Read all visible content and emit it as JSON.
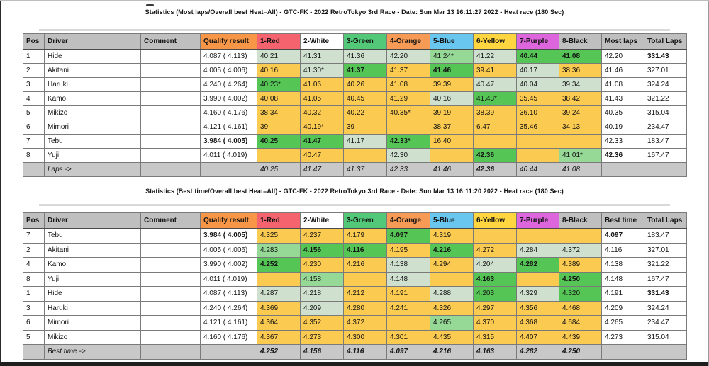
{
  "colors": {
    "header_gray": "#bfbfbf",
    "footer_gray": "#c8c8c8",
    "cells": {
      "w": "#ffffff",
      "y": "#fbca50",
      "g": "#55c556",
      "lg": "#96d896",
      "pg": "#cfe0cf"
    }
  },
  "tables": [
    {
      "title": "Statistics (Most laps/Overall best Heat=All) - GTC-FK - 2022 RetroTokyo 3rd Race - Date: Sun Mar 13 16:11:27 2022 - Heat race (180 Sec)",
      "columns": [
        {
          "label": "Pos",
          "bg": "#bfbfbf"
        },
        {
          "label": "Driver",
          "bg": "#bfbfbf"
        },
        {
          "label": "Comment",
          "bg": "#bfbfbf"
        },
        {
          "label": "Qualify result",
          "bg": "#f79646"
        },
        {
          "label": "1-Red",
          "bg": "#f4636e"
        },
        {
          "label": "2-White",
          "bg": "#ffffff"
        },
        {
          "label": "3-Green",
          "bg": "#52c878"
        },
        {
          "label": "4-Orange",
          "bg": "#f79a55"
        },
        {
          "label": "5-Blue",
          "bg": "#69c6ee"
        },
        {
          "label": "6-Yellow",
          "bg": "#ffd63f"
        },
        {
          "label": "7-Purple",
          "bg": "#dd66dd"
        },
        {
          "label": "8-Black",
          "bg": "#bfbfbf"
        },
        {
          "label": "Most laps",
          "bg": "#bfbfbf"
        },
        {
          "label": "Total Laps",
          "bg": "#bfbfbf"
        }
      ],
      "rows": [
        {
          "pos": "1",
          "driver": "Hide",
          "comment": "",
          "qualify": "4.087 ( 4.113)",
          "qbold": 0,
          "heats": [
            [
              "40.21",
              "pg",
              0
            ],
            [
              "41.31",
              "pg",
              0
            ],
            [
              "41.36",
              "pg",
              0
            ],
            [
              "42.20",
              "pg",
              0
            ],
            [
              "41.24*",
              "lg",
              0
            ],
            [
              "41.22",
              "pg",
              0
            ],
            [
              "40.44",
              "g",
              1
            ],
            [
              "41.08",
              "g",
              1
            ]
          ],
          "agg": "42.20",
          "aggBold": 0,
          "total": "331.43",
          "totalBold": 1
        },
        {
          "pos": "2",
          "driver": "Akitani",
          "comment": "",
          "qualify": "4.005 ( 4.006)",
          "qbold": 0,
          "heats": [
            [
              "40.16",
              "y",
              0
            ],
            [
              "41.30*",
              "pg",
              0
            ],
            [
              "41.37",
              "g",
              1
            ],
            [
              "41.37",
              "y",
              0
            ],
            [
              "41.46",
              "g",
              1
            ],
            [
              "39.41",
              "y",
              0
            ],
            [
              "40.17",
              "pg",
              0
            ],
            [
              "38.36",
              "y",
              0
            ]
          ],
          "agg": "41.46",
          "aggBold": 0,
          "total": "327.01",
          "totalBold": 0
        },
        {
          "pos": "3",
          "driver": "Haruki",
          "comment": "",
          "qualify": "4.240 ( 4.264)",
          "qbold": 0,
          "heats": [
            [
              "40.23*",
              "g",
              0
            ],
            [
              "41.06",
              "y",
              0
            ],
            [
              "40.26",
              "y",
              0
            ],
            [
              "41.08",
              "y",
              0
            ],
            [
              "39.39",
              "y",
              0
            ],
            [
              "40.47",
              "pg",
              0
            ],
            [
              "40.04",
              "pg",
              0
            ],
            [
              "39.34",
              "pg",
              0
            ]
          ],
          "agg": "41.08",
          "aggBold": 0,
          "total": "324.24",
          "totalBold": 0
        },
        {
          "pos": "4",
          "driver": "Kamo",
          "comment": "",
          "qualify": "3.990 ( 4.002)",
          "qbold": 0,
          "heats": [
            [
              "40.08",
              "y",
              0
            ],
            [
              "41.05",
              "y",
              0
            ],
            [
              "40.45",
              "y",
              0
            ],
            [
              "41.29",
              "y",
              0
            ],
            [
              "40.16",
              "pg",
              0
            ],
            [
              "41.43*",
              "g",
              0
            ],
            [
              "35.45",
              "y",
              0
            ],
            [
              "38.42",
              "y",
              0
            ]
          ],
          "agg": "41.43",
          "aggBold": 0,
          "total": "321.22",
          "totalBold": 0
        },
        {
          "pos": "5",
          "driver": "Mikizo",
          "comment": "",
          "qualify": "4.160 ( 4.176)",
          "qbold": 0,
          "heats": [
            [
              "38.34",
              "y",
              0
            ],
            [
              "40.32",
              "y",
              0
            ],
            [
              "40.22",
              "y",
              0
            ],
            [
              "40.35*",
              "y",
              0
            ],
            [
              "39.19",
              "y",
              0
            ],
            [
              "38.39",
              "y",
              0
            ],
            [
              "36.10",
              "y",
              0
            ],
            [
              "39.24",
              "y",
              0
            ]
          ],
          "agg": "40.35",
          "aggBold": 0,
          "total": "315.04",
          "totalBold": 0
        },
        {
          "pos": "6",
          "driver": "Mimori",
          "comment": "",
          "qualify": "4.121 ( 4.161)",
          "qbold": 0,
          "heats": [
            [
              "39",
              "y",
              0
            ],
            [
              "40.19*",
              "y",
              0
            ],
            [
              "39",
              "y",
              0
            ],
            [
              "",
              "y",
              0
            ],
            [
              "38.37",
              "y",
              0
            ],
            [
              "6.47",
              "y",
              0
            ],
            [
              "35.46",
              "y",
              0
            ],
            [
              "34.13",
              "y",
              0
            ]
          ],
          "agg": "40.19",
          "aggBold": 0,
          "total": "234.47",
          "totalBold": 0
        },
        {
          "pos": "7",
          "driver": "Tebu",
          "comment": "",
          "qualify": "3.984 ( 4.005)",
          "qbold": 1,
          "heats": [
            [
              "40.25",
              "g",
              1
            ],
            [
              "41.47",
              "g",
              1
            ],
            [
              "41.17",
              "pg",
              0
            ],
            [
              "42.33*",
              "g",
              1
            ],
            [
              "16.40",
              "y",
              0
            ],
            [
              "",
              "y",
              0
            ],
            [
              "",
              "y",
              0
            ],
            [
              "",
              "y",
              0
            ]
          ],
          "agg": "42.33",
          "aggBold": 0,
          "total": "183.47",
          "totalBold": 0
        },
        {
          "pos": "8",
          "driver": "Yuji",
          "comment": "",
          "qualify": "4.011 ( 4.019)",
          "qbold": 0,
          "heats": [
            [
              "",
              "y",
              0
            ],
            [
              "40.47",
              "y",
              0
            ],
            [
              "",
              "y",
              0
            ],
            [
              "42.30",
              "pg",
              0
            ],
            [
              "",
              "y",
              0
            ],
            [
              "42.36",
              "g",
              1
            ],
            [
              "",
              "y",
              0
            ],
            [
              "41.01*",
              "lg",
              0
            ]
          ],
          "agg": "42.36",
          "aggBold": 1,
          "total": "167.47",
          "totalBold": 0
        }
      ],
      "footer": {
        "label": "Laps ->",
        "values": [
          [
            "40.25",
            0
          ],
          [
            "41.47",
            0
          ],
          [
            "41.37",
            0
          ],
          [
            "42.33",
            0
          ],
          [
            "41.46",
            0
          ],
          [
            "42.36",
            1
          ],
          [
            "40.44",
            0
          ],
          [
            "41.08",
            0
          ]
        ]
      }
    },
    {
      "title": "Statistics (Best time/Overall best Heat=All) - GTC-FK - 2022 RetroTokyo 3rd Race - Date: Sun Mar 13 16:11:20 2022 - Heat race (180 Sec)",
      "columns": [
        {
          "label": "Pos",
          "bg": "#bfbfbf"
        },
        {
          "label": "Driver",
          "bg": "#bfbfbf"
        },
        {
          "label": "Comment",
          "bg": "#bfbfbf"
        },
        {
          "label": "Qualify result",
          "bg": "#f79646"
        },
        {
          "label": "1-Red",
          "bg": "#f4636e"
        },
        {
          "label": "2-White",
          "bg": "#ffffff"
        },
        {
          "label": "3-Green",
          "bg": "#52c878"
        },
        {
          "label": "4-Orange",
          "bg": "#f79a55"
        },
        {
          "label": "5-Blue",
          "bg": "#69c6ee"
        },
        {
          "label": "6-Yellow",
          "bg": "#ffd63f"
        },
        {
          "label": "7-Purple",
          "bg": "#dd66dd"
        },
        {
          "label": "8-Black",
          "bg": "#bfbfbf"
        },
        {
          "label": "Best time",
          "bg": "#bfbfbf"
        },
        {
          "label": "Total Laps",
          "bg": "#bfbfbf"
        }
      ],
      "rows": [
        {
          "pos": "7",
          "driver": "Tebu",
          "comment": "",
          "qualify": "3.984 ( 4.005)",
          "qbold": 1,
          "heats": [
            [
              "4.325",
              "y",
              0
            ],
            [
              "4.237",
              "y",
              0
            ],
            [
              "4.179",
              "y",
              0
            ],
            [
              "4.097",
              "g",
              1
            ],
            [
              "4.319",
              "y",
              0
            ],
            [
              "",
              "y",
              0
            ],
            [
              "",
              "y",
              0
            ],
            [
              "",
              "y",
              0
            ]
          ],
          "agg": "4.097",
          "aggBold": 1,
          "total": "183.47",
          "totalBold": 0
        },
        {
          "pos": "2",
          "driver": "Akitani",
          "comment": "",
          "qualify": "4.005 ( 4.006)",
          "qbold": 0,
          "heats": [
            [
              "4.283",
              "lg",
              0
            ],
            [
              "4.156",
              "g",
              1
            ],
            [
              "4.116",
              "g",
              1
            ],
            [
              "4.195",
              "y",
              0
            ],
            [
              "4.216",
              "g",
              1
            ],
            [
              "4.272",
              "y",
              0
            ],
            [
              "4.284",
              "pg",
              0
            ],
            [
              "4.372",
              "pg",
              0
            ]
          ],
          "agg": "4.116",
          "aggBold": 0,
          "total": "327.01",
          "totalBold": 0
        },
        {
          "pos": "4",
          "driver": "Kamo",
          "comment": "",
          "qualify": "3.990 ( 4.002)",
          "qbold": 0,
          "heats": [
            [
              "4.252",
              "g",
              1
            ],
            [
              "4.230",
              "y",
              0
            ],
            [
              "4.216",
              "y",
              0
            ],
            [
              "4.138",
              "pg",
              0
            ],
            [
              "4.294",
              "y",
              0
            ],
            [
              "4.204",
              "pg",
              0
            ],
            [
              "4.282",
              "g",
              1
            ],
            [
              "4.389",
              "y",
              0
            ]
          ],
          "agg": "4.138",
          "aggBold": 0,
          "total": "321.22",
          "totalBold": 0
        },
        {
          "pos": "8",
          "driver": "Yuji",
          "comment": "",
          "qualify": "4.011 ( 4.019)",
          "qbold": 0,
          "heats": [
            [
              "",
              "y",
              0
            ],
            [
              "4.158",
              "lg",
              0
            ],
            [
              "",
              "y",
              0
            ],
            [
              "4.148",
              "pg",
              0
            ],
            [
              "",
              "y",
              0
            ],
            [
              "4.163",
              "g",
              1
            ],
            [
              "",
              "y",
              0
            ],
            [
              "4.250",
              "g",
              1
            ]
          ],
          "agg": "4.148",
          "aggBold": 0,
          "total": "167.47",
          "totalBold": 0
        },
        {
          "pos": "1",
          "driver": "Hide",
          "comment": "",
          "qualify": "4.087 ( 4.113)",
          "qbold": 0,
          "heats": [
            [
              "4.287",
              "pg",
              0
            ],
            [
              "4.218",
              "pg",
              0
            ],
            [
              "4.212",
              "y",
              0
            ],
            [
              "4.191",
              "y",
              0
            ],
            [
              "4.288",
              "pg",
              0
            ],
            [
              "4.203",
              "g",
              0
            ],
            [
              "4.329",
              "pg",
              0
            ],
            [
              "4.320",
              "g",
              0
            ]
          ],
          "agg": "4.191",
          "aggBold": 0,
          "total": "331.43",
          "totalBold": 1
        },
        {
          "pos": "3",
          "driver": "Haruki",
          "comment": "",
          "qualify": "4.240 ( 4.264)",
          "qbold": 0,
          "heats": [
            [
              "4.369",
              "y",
              0
            ],
            [
              "4.209",
              "pg",
              0
            ],
            [
              "4.280",
              "y",
              0
            ],
            [
              "4.241",
              "y",
              0
            ],
            [
              "4.326",
              "y",
              0
            ],
            [
              "4.297",
              "y",
              0
            ],
            [
              "4.356",
              "y",
              0
            ],
            [
              "4.468",
              "y",
              0
            ]
          ],
          "agg": "4.209",
          "aggBold": 0,
          "total": "324.24",
          "totalBold": 0
        },
        {
          "pos": "6",
          "driver": "Mimori",
          "comment": "",
          "qualify": "4.121 ( 4.161)",
          "qbold": 0,
          "heats": [
            [
              "4.364",
              "y",
              0
            ],
            [
              "4.352",
              "y",
              0
            ],
            [
              "4.372",
              "y",
              0
            ],
            [
              "",
              "y",
              0
            ],
            [
              "4.265",
              "lg",
              0
            ],
            [
              "4.370",
              "y",
              0
            ],
            [
              "4.368",
              "y",
              0
            ],
            [
              "4.684",
              "y",
              0
            ]
          ],
          "agg": "4.265",
          "aggBold": 0,
          "total": "234.47",
          "totalBold": 0
        },
        {
          "pos": "5",
          "driver": "Mikizo",
          "comment": "",
          "qualify": "4.160 ( 4.176)",
          "qbold": 0,
          "heats": [
            [
              "4.367",
              "y",
              0
            ],
            [
              "4.273",
              "y",
              0
            ],
            [
              "4.300",
              "y",
              0
            ],
            [
              "4.301",
              "y",
              0
            ],
            [
              "4.435",
              "y",
              0
            ],
            [
              "4.315",
              "y",
              0
            ],
            [
              "4.407",
              "y",
              0
            ],
            [
              "4.439",
              "y",
              0
            ]
          ],
          "agg": "4.273",
          "aggBold": 0,
          "total": "315.04",
          "totalBold": 0
        }
      ],
      "footer": {
        "label": "Best time ->",
        "values": [
          [
            "4.252",
            1
          ],
          [
            "4.156",
            1
          ],
          [
            "4.116",
            1
          ],
          [
            "4.097",
            1
          ],
          [
            "4.216",
            1
          ],
          [
            "4.163",
            1
          ],
          [
            "4.282",
            1
          ],
          [
            "4.250",
            1
          ]
        ]
      }
    }
  ]
}
